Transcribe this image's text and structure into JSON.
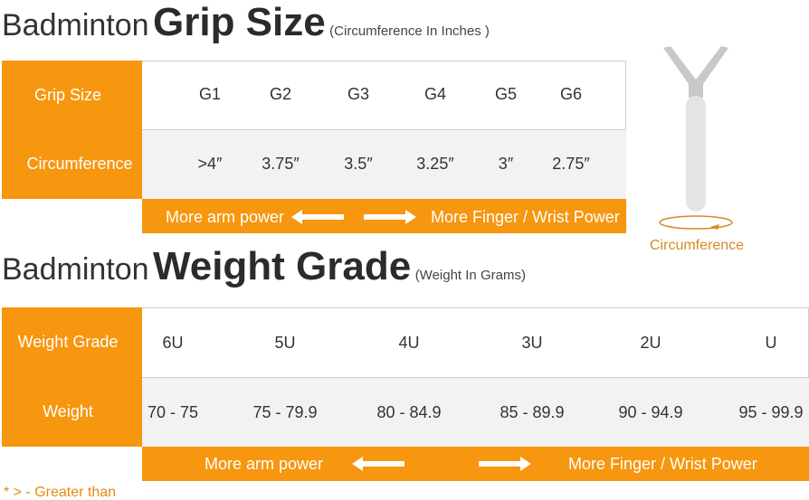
{
  "grip": {
    "title_light": "Badminton",
    "title_bold": "Grip Size",
    "subtitle": "(Circumference In Inches )",
    "row_headers": [
      "Grip Size",
      "Circumference"
    ],
    "sizes": [
      "G1",
      "G2",
      "G3",
      "G4",
      "G5",
      "G6"
    ],
    "circumferences": [
      ">4″",
      "3.75″",
      "3.5″",
      "3.25″",
      "3″",
      "2.75″"
    ],
    "left_label": "More arm power",
    "right_label": "More Finger / Wrist Power",
    "diagram_label": "Circumference"
  },
  "weight": {
    "title_light": "Badminton",
    "title_bold": "Weight Grade",
    "subtitle": "(Weight In Grams)",
    "row_headers": [
      "Weight Grade",
      "Weight"
    ],
    "grades": [
      "6U",
      "5U",
      "4U",
      "3U",
      "2U",
      "U"
    ],
    "weights": [
      "70 - 75",
      "75 - 79.9",
      "80 - 84.9",
      "85 - 89.9",
      "90 - 94.9",
      "95 - 99.9"
    ],
    "left_label": "More arm power",
    "right_label": "More Finger / Wrist Power"
  },
  "footnote": "* > - Greater than",
  "colors": {
    "accent": "#f7960f",
    "row_alt": "#f2f2f2",
    "label": "#d68a25"
  }
}
